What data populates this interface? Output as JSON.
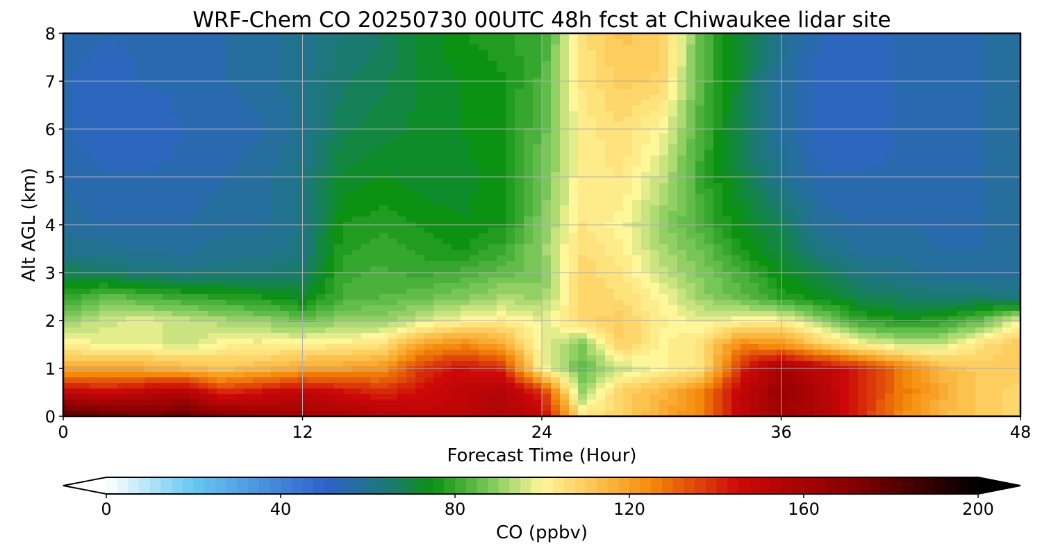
{
  "chart_data": {
    "type": "heatmap",
    "title": "WRF-Chem CO  20250730 00UTC 48h fcst at Chiwaukee lidar site",
    "xlabel": "Forecast Time (Hour)",
    "ylabel": "Alt AGL (km)",
    "xlim": [
      0,
      48
    ],
    "ylim": [
      0,
      8
    ],
    "x_ticks": [
      "0",
      "12",
      "24",
      "36",
      "48"
    ],
    "y_ticks": [
      "0",
      "1",
      "2",
      "3",
      "4",
      "5",
      "6",
      "7",
      "8"
    ],
    "grid": true,
    "x_hours": [
      0,
      2,
      4,
      6,
      8,
      10,
      12,
      14,
      16,
      18,
      20,
      22,
      24,
      26,
      28,
      30,
      32,
      34,
      36,
      38,
      40,
      42,
      44,
      46,
      48
    ],
    "y_km": [
      0,
      0.5,
      1,
      1.5,
      2,
      2.5,
      3,
      3.5,
      4,
      5,
      6,
      7,
      8
    ],
    "co_ppbv_rows_by_altitude": [
      [
        185,
        180,
        175,
        178,
        170,
        165,
        160,
        158,
        155,
        150,
        150,
        155,
        150,
        104,
        108,
        118,
        125,
        150,
        160,
        155,
        140,
        125,
        115,
        110,
        108
      ],
      [
        150,
        145,
        150,
        155,
        140,
        145,
        150,
        145,
        140,
        145,
        150,
        155,
        140,
        90,
        110,
        115,
        125,
        150,
        165,
        155,
        140,
        128,
        118,
        110,
        108
      ],
      [
        118,
        118,
        118,
        115,
        112,
        115,
        118,
        120,
        122,
        138,
        145,
        140,
        100,
        85,
        95,
        100,
        105,
        140,
        160,
        150,
        140,
        128,
        115,
        110,
        110
      ],
      [
        102,
        98,
        98,
        95,
        100,
        100,
        102,
        102,
        105,
        120,
        125,
        118,
        98,
        88,
        110,
        100,
        105,
        125,
        122,
        110,
        100,
        95,
        95,
        105,
        112
      ],
      [
        90,
        95,
        98,
        95,
        92,
        90,
        86,
        90,
        90,
        95,
        100,
        102,
        98,
        108,
        110,
        102,
        98,
        100,
        100,
        90,
        80,
        76,
        78,
        85,
        98
      ],
      [
        78,
        85,
        82,
        80,
        78,
        76,
        72,
        82,
        84,
        85,
        88,
        92,
        90,
        108,
        106,
        100,
        90,
        85,
        78,
        74,
        68,
        66,
        64,
        64,
        62
      ],
      [
        68,
        66,
        64,
        62,
        63,
        64,
        66,
        80,
        82,
        80,
        82,
        85,
        88,
        108,
        104,
        95,
        88,
        82,
        74,
        68,
        62,
        60,
        58,
        58,
        58
      ],
      [
        60,
        60,
        58,
        58,
        60,
        60,
        62,
        78,
        80,
        78,
        76,
        80,
        90,
        106,
        102,
        92,
        86,
        76,
        70,
        62,
        58,
        58,
        56,
        56,
        58
      ],
      [
        58,
        56,
        56,
        56,
        58,
        58,
        62,
        76,
        78,
        76,
        74,
        76,
        88,
        104,
        100,
        90,
        82,
        74,
        68,
        58,
        56,
        56,
        56,
        56,
        58
      ],
      [
        56,
        54,
        54,
        54,
        56,
        58,
        62,
        72,
        74,
        72,
        72,
        76,
        86,
        102,
        104,
        95,
        80,
        70,
        60,
        54,
        54,
        54,
        56,
        56,
        58
      ],
      [
        54,
        52,
        52,
        54,
        54,
        56,
        60,
        68,
        70,
        72,
        74,
        76,
        84,
        102,
        106,
        100,
        82,
        68,
        58,
        52,
        52,
        54,
        56,
        56,
        58
      ],
      [
        54,
        52,
        54,
        54,
        56,
        58,
        60,
        66,
        68,
        72,
        74,
        76,
        82,
        104,
        110,
        108,
        84,
        70,
        58,
        52,
        52,
        54,
        56,
        56,
        58
      ],
      [
        56,
        54,
        54,
        56,
        56,
        58,
        60,
        64,
        66,
        72,
        76,
        78,
        80,
        105,
        112,
        110,
        85,
        70,
        60,
        54,
        52,
        54,
        56,
        56,
        58
      ]
    ],
    "colorbar": {
      "label": "CO  (ppbv)",
      "min": 0,
      "max": 200,
      "ticks": [
        "0",
        "40",
        "80",
        "120",
        "160",
        "200"
      ],
      "extend": "both",
      "color_stops": [
        {
          "v": 0,
          "c": "#ffffff"
        },
        {
          "v": 20,
          "c": "#66c8f2"
        },
        {
          "v": 50,
          "c": "#2f62cc"
        },
        {
          "v": 65,
          "c": "#1a7a70"
        },
        {
          "v": 75,
          "c": "#0b9212"
        },
        {
          "v": 88,
          "c": "#7cc85a"
        },
        {
          "v": 100,
          "c": "#fff799"
        },
        {
          "v": 112,
          "c": "#fcc451"
        },
        {
          "v": 125,
          "c": "#f48a0a"
        },
        {
          "v": 145,
          "c": "#cc0808"
        },
        {
          "v": 170,
          "c": "#8a0000"
        },
        {
          "v": 200,
          "c": "#000000"
        }
      ]
    }
  }
}
